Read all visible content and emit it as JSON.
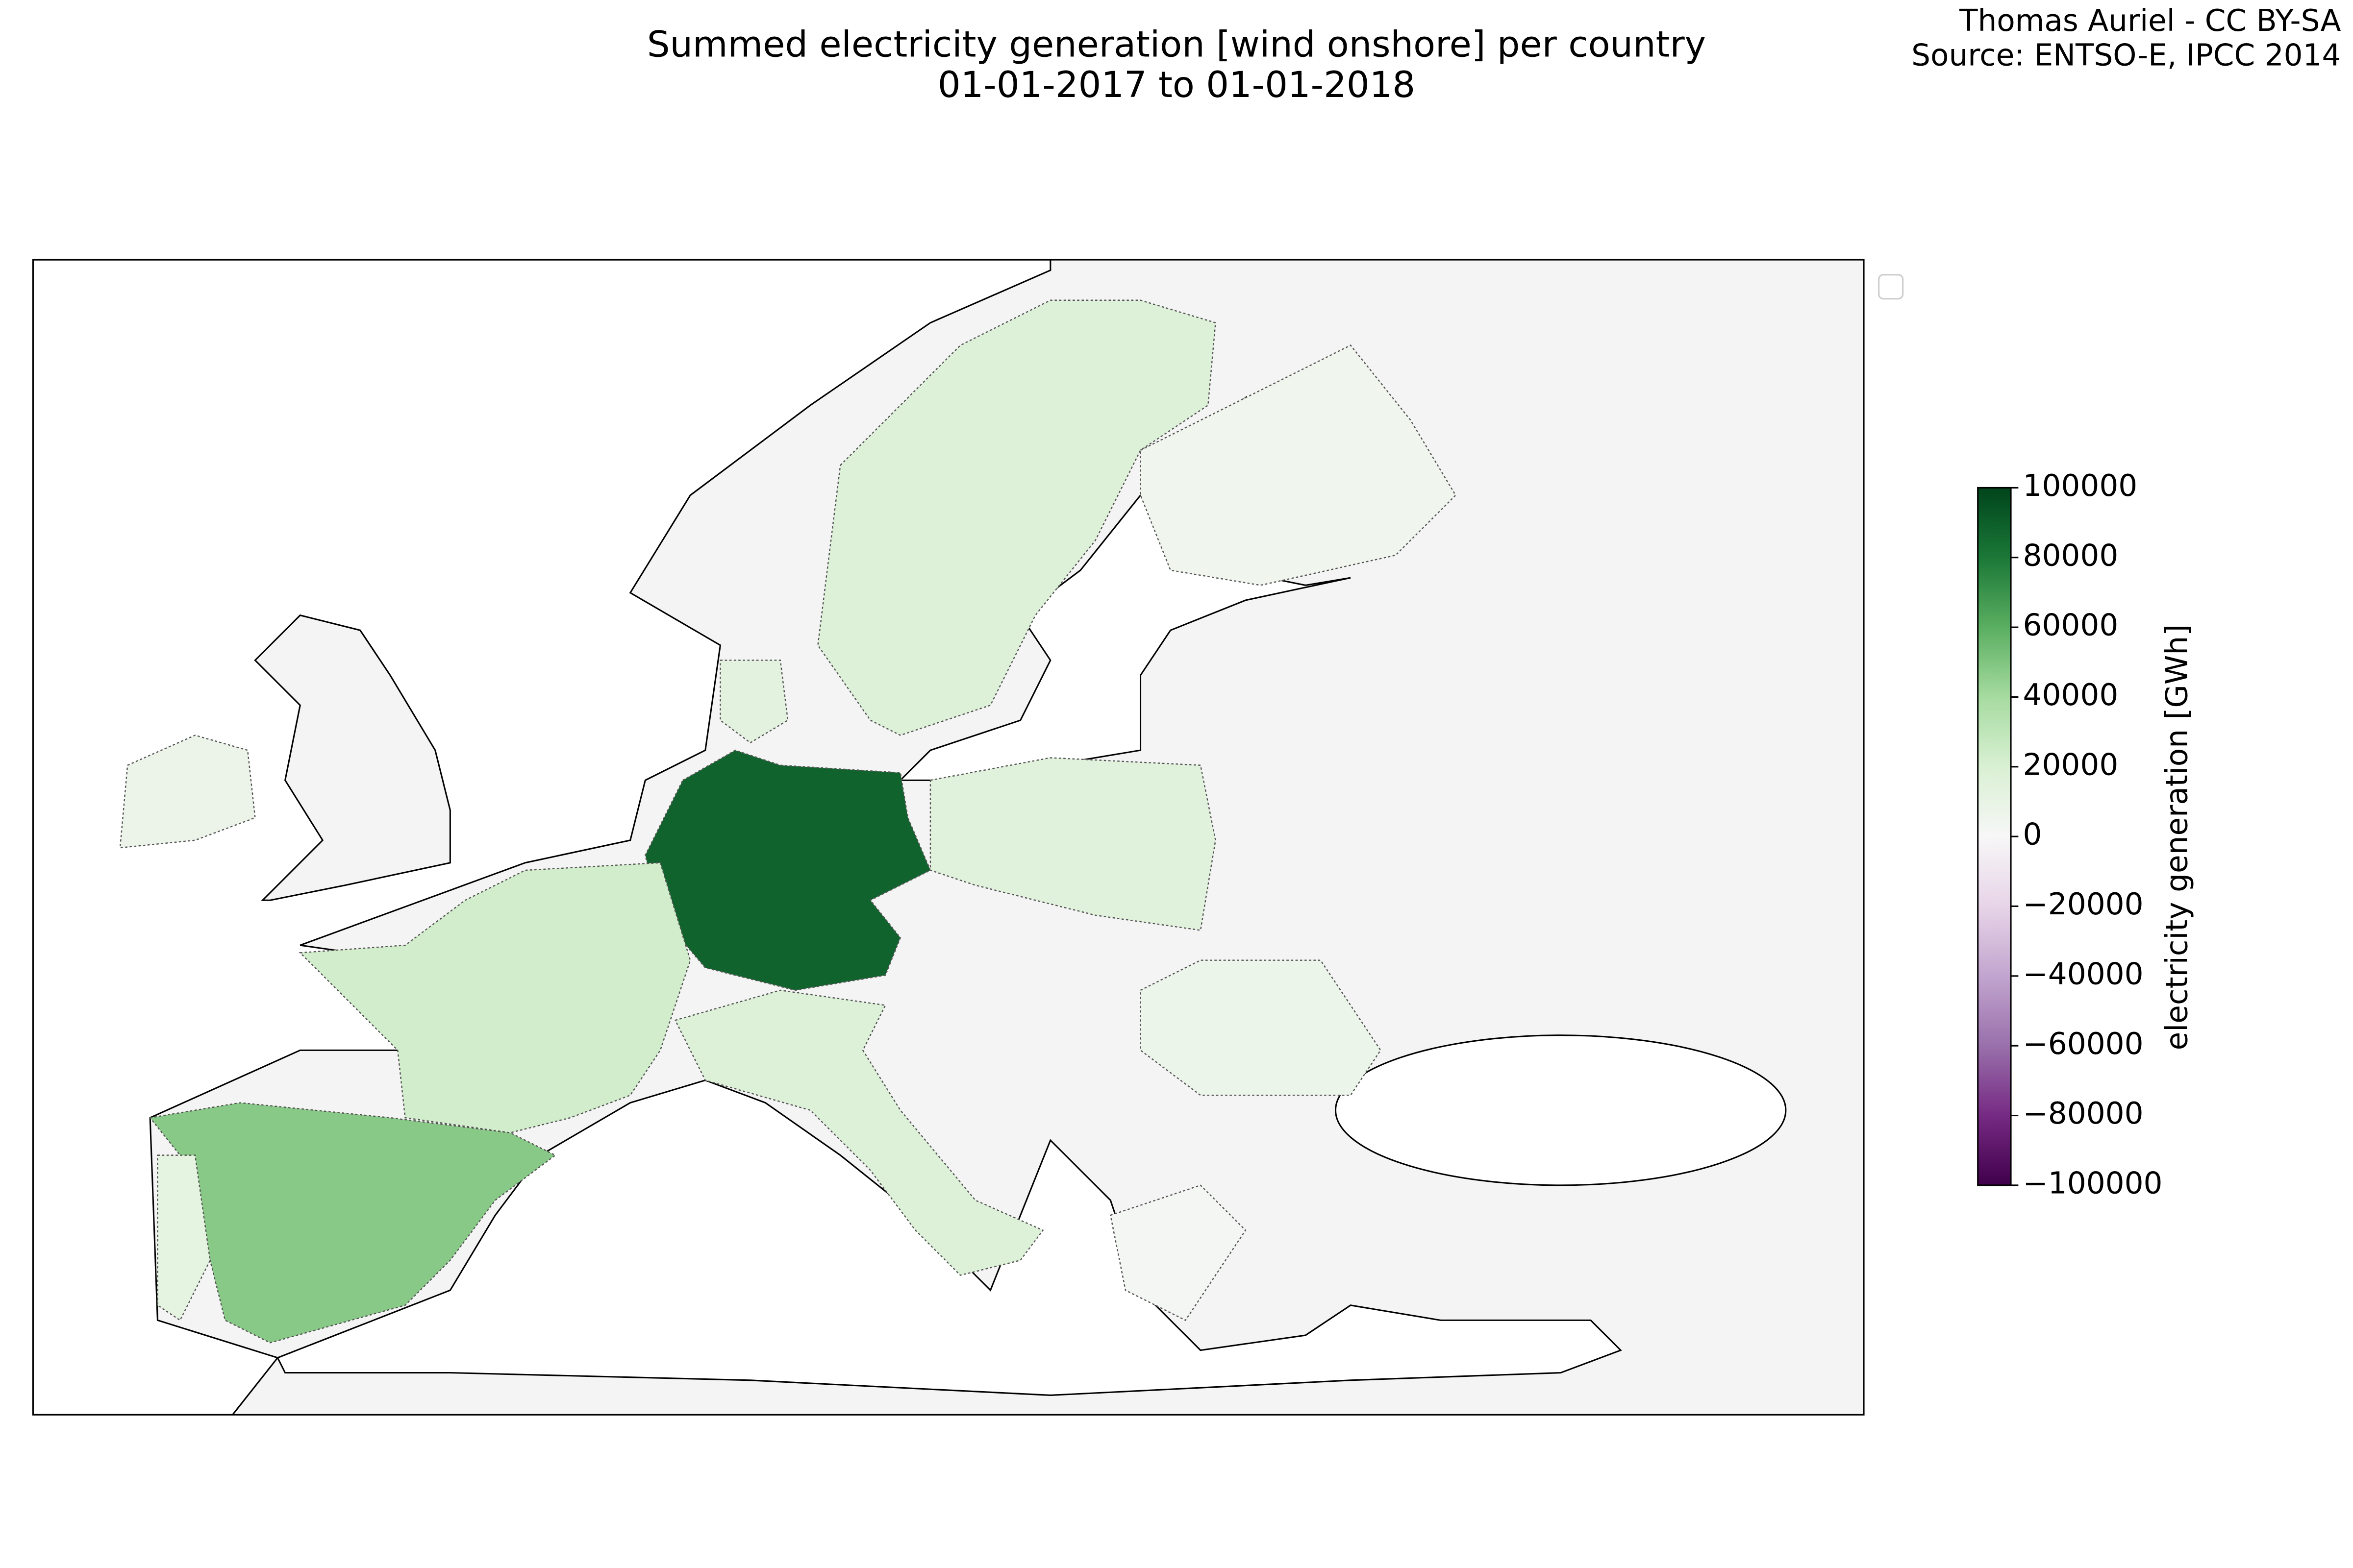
{
  "chart_data": {
    "type": "choropleth",
    "title": [
      "Summed electricity generation [wind onshore] per country",
      "01-01-2017 to 01-01-2018"
    ],
    "credits": [
      "Thomas Auriel - CC BY-SA",
      "Source: ENTSO-E, IPCC 2014"
    ],
    "colorbar_label": "electricity generation [GWh]",
    "clim": [
      -100000,
      100000
    ],
    "cticks": [
      100000,
      80000,
      60000,
      40000,
      20000,
      0,
      {
        "value": -20000,
        "label": "−20000"
      },
      {
        "value": -40000,
        "label": "−40000"
      },
      {
        "value": -60000,
        "label": "−60000"
      },
      {
        "value": -80000,
        "label": "−80000"
      },
      {
        "value": -100000,
        "label": "−100000"
      }
    ],
    "colormap": [
      "#40004b",
      "#762a83",
      "#9970ab",
      "#c2a5cf",
      "#e7d4e8",
      "#f7f7f7",
      "#d9f0d3",
      "#a6dba0",
      "#5aae61",
      "#1b7837",
      "#00441b"
    ],
    "values": [
      88000,
      48000,
      23000,
      17500,
      17500,
      15000,
      12000,
      14000,
      7000,
      5000,
      3000,
      7500
    ]
  }
}
